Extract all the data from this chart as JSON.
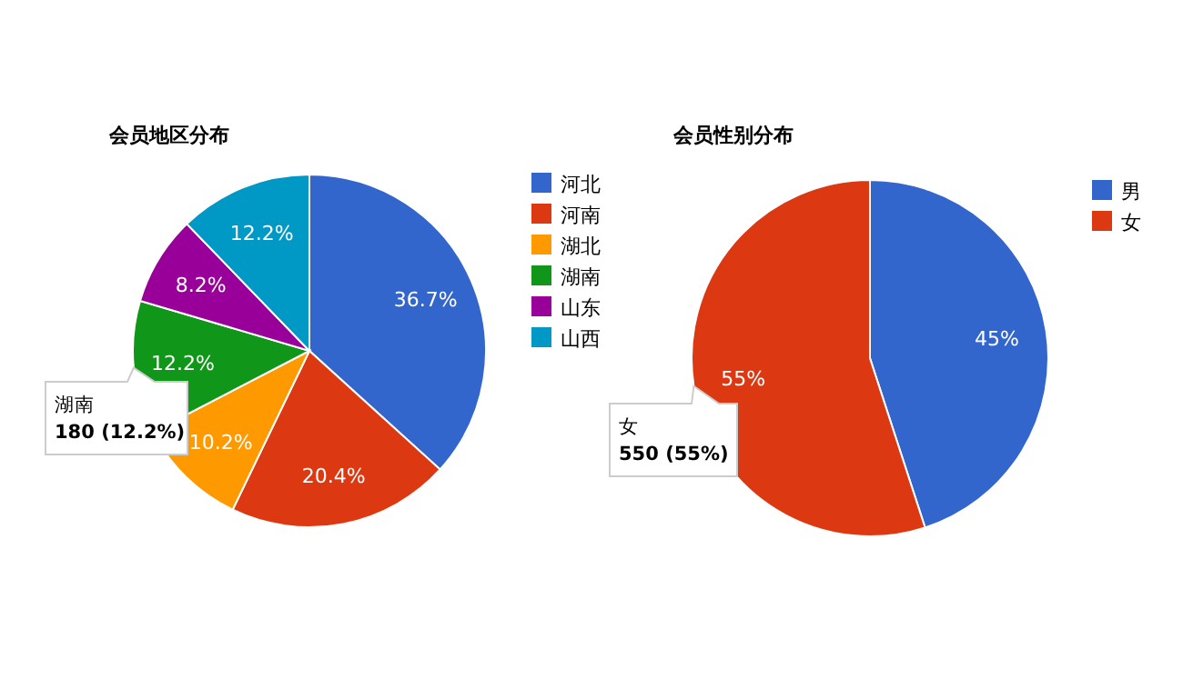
{
  "chart_data": [
    {
      "type": "pie",
      "title": "会员地区分布",
      "categories": [
        "河北",
        "河南",
        "湖北",
        "湖南",
        "山东",
        "山西"
      ],
      "values": [
        36.7,
        20.4,
        10.2,
        12.2,
        8.2,
        12.2
      ],
      "colors": [
        "#3366cc",
        "#dc3912",
        "#ff9900",
        "#109618",
        "#990099",
        "#0099c6"
      ],
      "value_labels": [
        "36.7%",
        "20.4%",
        "10.2%",
        "12.2%",
        "8.2%",
        "12.2%"
      ],
      "legend": "right",
      "annotations": [
        "湖南\n180 (12.2%)"
      ]
    },
    {
      "type": "pie",
      "title": "会员性别分布",
      "categories": [
        "男",
        "女"
      ],
      "values": [
        45,
        55
      ],
      "colors": [
        "#3366cc",
        "#dc3912"
      ],
      "value_labels": [
        "45%",
        "55%"
      ],
      "legend": "right",
      "annotations": [
        "女\n550 (55%)"
      ]
    }
  ]
}
